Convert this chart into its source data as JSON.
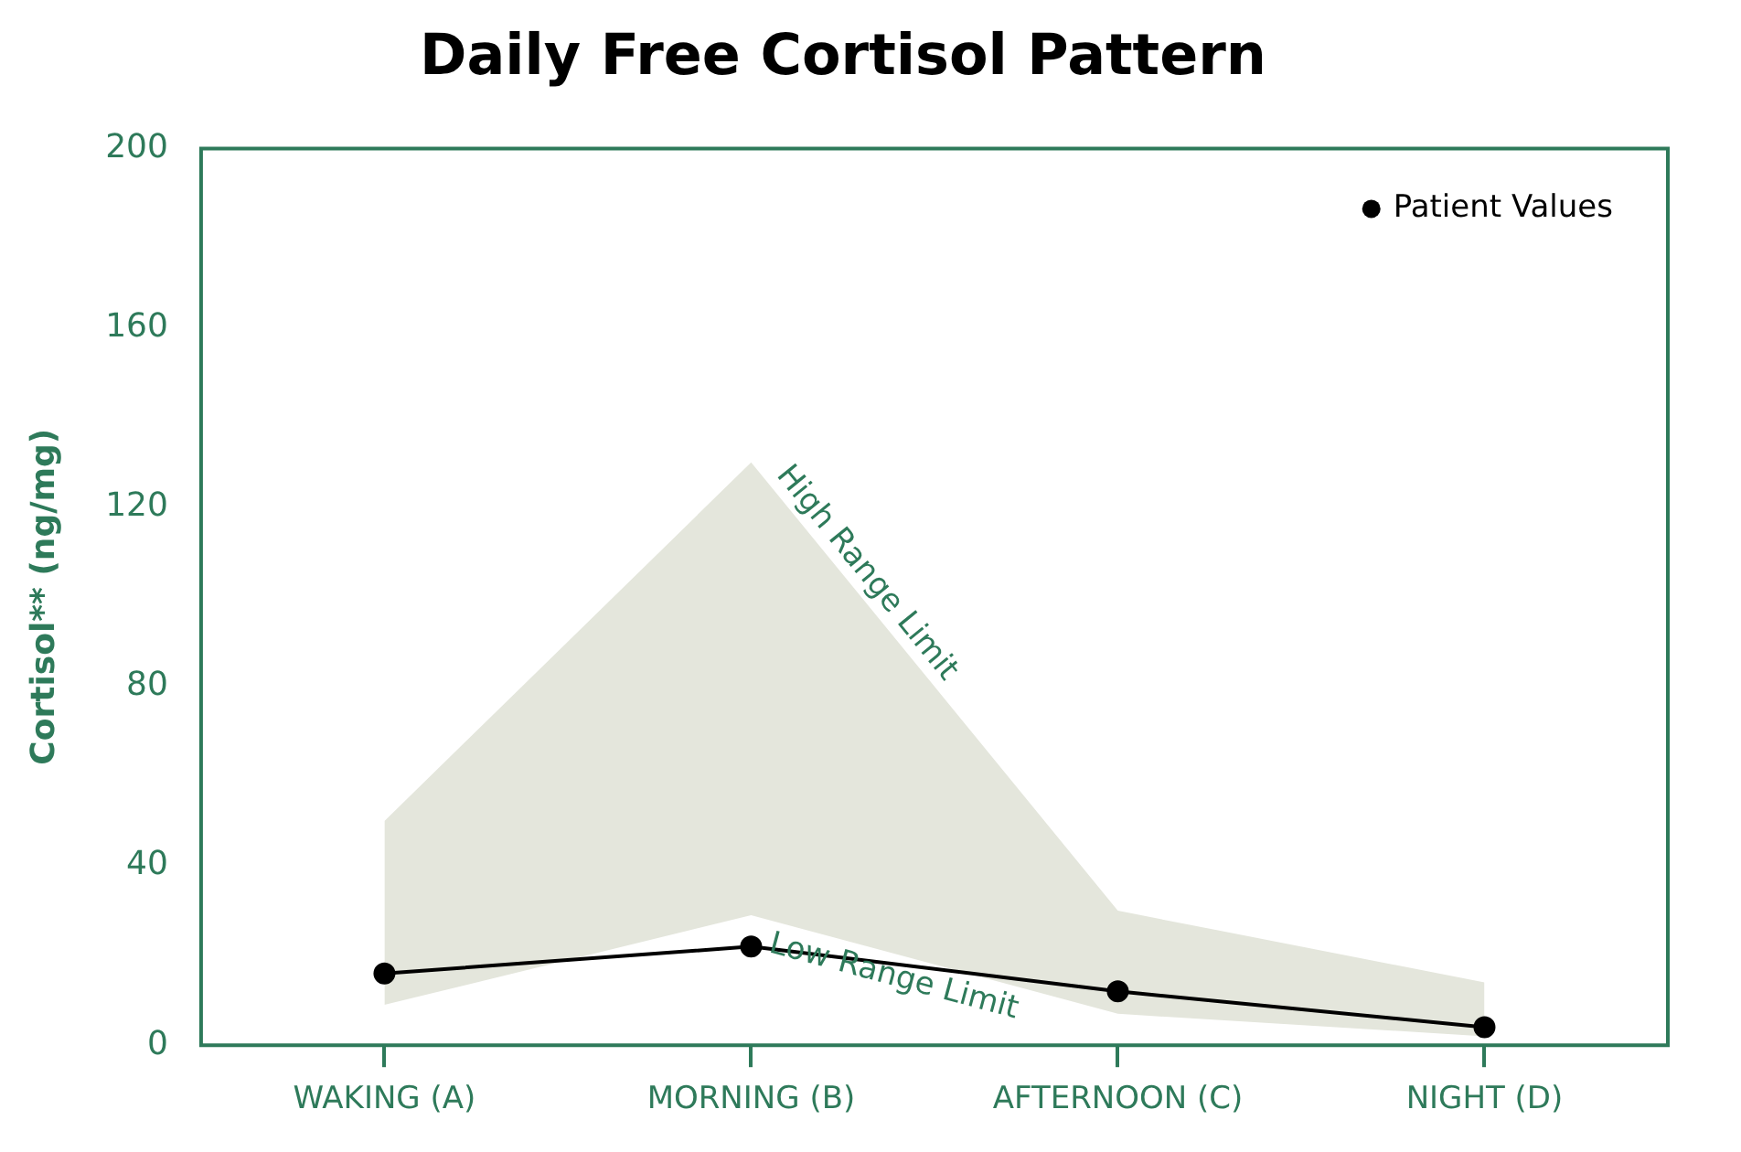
{
  "chart_data": {
    "type": "line",
    "title": "Daily Free Cortisol Pattern",
    "ylabel": "Cortisol** (ng/mg)",
    "categories": [
      "WAKING (A)",
      "MORNING (B)",
      "AFTERNOON (C)",
      "NIGHT (D)"
    ],
    "series": [
      {
        "name": "Patient Values",
        "color": "#000000",
        "values": [
          16,
          22,
          12,
          4
        ],
        "lower": [
          9,
          29,
          7,
          2
        ],
        "upper": [
          50,
          130,
          30,
          14
        ]
      }
    ],
    "annotations": [
      {
        "text": "High Range Limit",
        "x": "MORNING (B)",
        "y": 130
      },
      {
        "text": "Low Range Limit",
        "x": "MORNING (B)",
        "y": 29
      }
    ],
    "ylim": [
      0,
      200
    ],
    "yticks": [
      0,
      40,
      80,
      120,
      160,
      200
    ],
    "grid": false,
    "legend": "top right",
    "marker": "circle",
    "line_style": "solid"
  }
}
